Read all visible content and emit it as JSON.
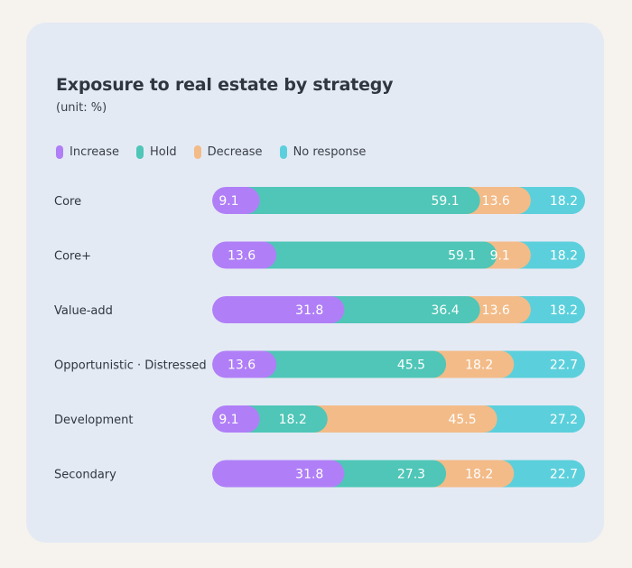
{
  "chart_data": {
    "type": "bar",
    "orientation": "horizontal",
    "stacked": true,
    "title": "Exposure to real estate by strategy",
    "subtitle": "(unit: %)",
    "categories": [
      "Core",
      "Core+",
      "Value-add",
      "Opportunistic · Distressed",
      "Development",
      "Secondary"
    ],
    "series": [
      {
        "name": "Increase",
        "color": "#b07ff7",
        "values": [
          9.1,
          13.6,
          31.8,
          13.6,
          9.1,
          31.8
        ]
      },
      {
        "name": "Hold",
        "color": "#4fc6b7",
        "values": [
          59.1,
          59.1,
          36.4,
          45.5,
          18.2,
          27.3
        ]
      },
      {
        "name": "Decrease",
        "color": "#f3bb88",
        "values": [
          13.6,
          9.1,
          13.6,
          18.2,
          45.5,
          18.2
        ]
      },
      {
        "name": "No response",
        "color": "#5bd0dc",
        "values": [
          18.2,
          18.2,
          18.2,
          22.7,
          27.2,
          22.7
        ]
      }
    ],
    "xlim": [
      0,
      100
    ],
    "legend": "top-left",
    "grid": false
  }
}
